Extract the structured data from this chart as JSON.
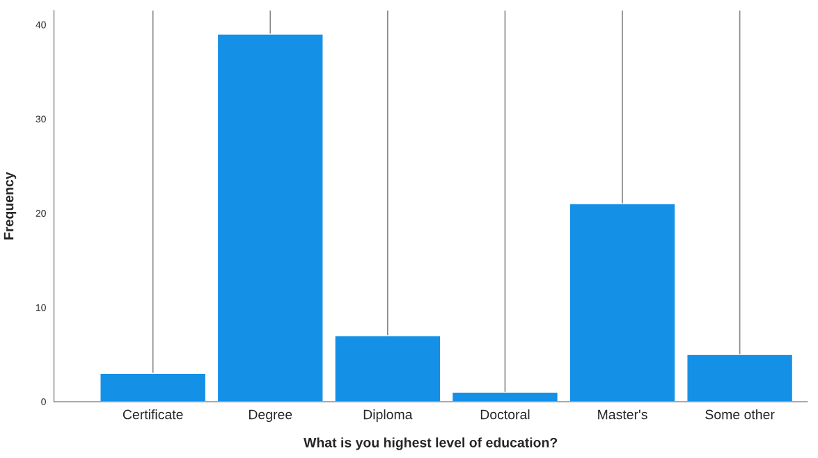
{
  "chart_data": {
    "type": "bar",
    "xlabel": "What is you highest level of education?",
    "ylabel": "Frequency",
    "categories": [
      "Certificate",
      "Degree",
      "Diploma",
      "Doctoral",
      "Master's",
      "Some other"
    ],
    "values": [
      3,
      39,
      7,
      1,
      21,
      5
    ],
    "color": "#1490e6",
    "ylim": [
      0,
      41.5
    ],
    "yticks": [
      0,
      10,
      20,
      30,
      40
    ],
    "grid": "x",
    "legend": false
  }
}
